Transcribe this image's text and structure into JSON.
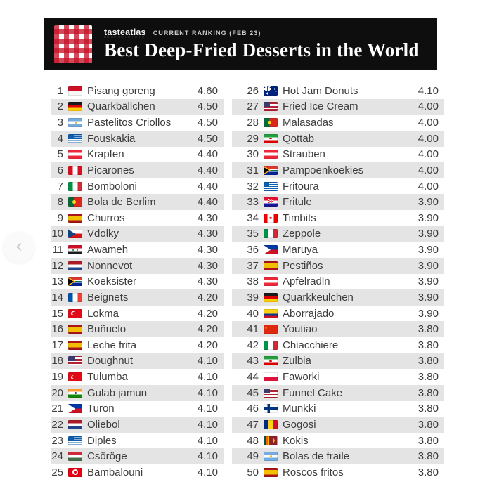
{
  "header": {
    "brand": "tasteatlas",
    "subtitle": "CURRENT RANKING (FEB 23)",
    "title": "Best Deep-Fried Desserts in the World",
    "logo_icon": "red-white-gingham-logo"
  },
  "carousel": {
    "prev_icon": "‹"
  },
  "colors": {
    "header_bg": "#0f0e0e",
    "logo_red": "#c5162c",
    "row_stripe": "#e4e4e4",
    "text": "#3d3d3d"
  },
  "ranking": {
    "left": [
      {
        "rank": 1,
        "flag": "indonesia",
        "name": "Pisang goreng",
        "score": "4.60"
      },
      {
        "rank": 2,
        "flag": "germany",
        "name": "Quarkbällchen",
        "score": "4.50"
      },
      {
        "rank": 3,
        "flag": "argentina",
        "name": "Pastelitos Criollos",
        "score": "4.50"
      },
      {
        "rank": 4,
        "flag": "greece",
        "name": "Fouskakia",
        "score": "4.50"
      },
      {
        "rank": 5,
        "flag": "austria",
        "name": "Krapfen",
        "score": "4.40"
      },
      {
        "rank": 6,
        "flag": "peru",
        "name": "Picarones",
        "score": "4.40"
      },
      {
        "rank": 7,
        "flag": "italy",
        "name": "Bomboloni",
        "score": "4.40"
      },
      {
        "rank": 8,
        "flag": "portugal",
        "name": "Bola de Berlim",
        "score": "4.40"
      },
      {
        "rank": 9,
        "flag": "spain",
        "name": "Churros",
        "score": "4.30"
      },
      {
        "rank": 10,
        "flag": "czechia",
        "name": "Vdolky",
        "score": "4.30"
      },
      {
        "rank": 11,
        "flag": "syria",
        "name": "Awameh",
        "score": "4.30"
      },
      {
        "rank": 12,
        "flag": "netherlands",
        "name": "Nonnevot",
        "score": "4.30"
      },
      {
        "rank": 13,
        "flag": "south-africa",
        "name": "Koeksister",
        "score": "4.30"
      },
      {
        "rank": 14,
        "flag": "france",
        "name": "Beignets",
        "score": "4.20"
      },
      {
        "rank": 15,
        "flag": "turkey",
        "name": "Lokma",
        "score": "4.20"
      },
      {
        "rank": 16,
        "flag": "spain",
        "name": "Buñuelo",
        "score": "4.20"
      },
      {
        "rank": 17,
        "flag": "spain",
        "name": "Leche frita",
        "score": "4.20"
      },
      {
        "rank": 18,
        "flag": "usa",
        "name": "Doughnut",
        "score": "4.10"
      },
      {
        "rank": 19,
        "flag": "turkey",
        "name": "Tulumba",
        "score": "4.10"
      },
      {
        "rank": 20,
        "flag": "india",
        "name": "Gulab jamun",
        "score": "4.10"
      },
      {
        "rank": 21,
        "flag": "philippines",
        "name": "Turon",
        "score": "4.10"
      },
      {
        "rank": 22,
        "flag": "netherlands",
        "name": "Oliebol",
        "score": "4.10"
      },
      {
        "rank": 23,
        "flag": "greece",
        "name": "Diples",
        "score": "4.10"
      },
      {
        "rank": 24,
        "flag": "hungary",
        "name": "Csöröge",
        "score": "4.10"
      },
      {
        "rank": 25,
        "flag": "tunisia",
        "name": "Bambalouni",
        "score": "4.10"
      }
    ],
    "right": [
      {
        "rank": 26,
        "flag": "australia",
        "name": "Hot Jam Donuts",
        "score": "4.10"
      },
      {
        "rank": 27,
        "flag": "usa",
        "name": "Fried Ice Cream",
        "score": "4.00"
      },
      {
        "rank": 28,
        "flag": "portugal",
        "name": "Malasadas",
        "score": "4.00"
      },
      {
        "rank": 29,
        "flag": "iran",
        "name": "Qottab",
        "score": "4.00"
      },
      {
        "rank": 30,
        "flag": "austria",
        "name": "Strauben",
        "score": "4.00"
      },
      {
        "rank": 31,
        "flag": "south-africa",
        "name": "Pampoenkoekies",
        "score": "4.00"
      },
      {
        "rank": 32,
        "flag": "greece",
        "name": "Fritoura",
        "score": "4.00"
      },
      {
        "rank": 33,
        "flag": "croatia",
        "name": "Fritule",
        "score": "3.90"
      },
      {
        "rank": 34,
        "flag": "canada",
        "name": "Timbits",
        "score": "3.90"
      },
      {
        "rank": 35,
        "flag": "italy",
        "name": "Zeppole",
        "score": "3.90"
      },
      {
        "rank": 36,
        "flag": "philippines",
        "name": "Maruya",
        "score": "3.90"
      },
      {
        "rank": 37,
        "flag": "spain",
        "name": "Pestiños",
        "score": "3.90"
      },
      {
        "rank": 38,
        "flag": "austria",
        "name": "Apfelradln",
        "score": "3.90"
      },
      {
        "rank": 39,
        "flag": "germany",
        "name": "Quarkkeulchen",
        "score": "3.90"
      },
      {
        "rank": 40,
        "flag": "colombia",
        "name": "Aborrajado",
        "score": "3.90"
      },
      {
        "rank": 41,
        "flag": "china",
        "name": "Youtiao",
        "score": "3.80"
      },
      {
        "rank": 42,
        "flag": "italy",
        "name": "Chiacchiere",
        "score": "3.80"
      },
      {
        "rank": 43,
        "flag": "iran",
        "name": "Zulbia",
        "score": "3.80"
      },
      {
        "rank": 44,
        "flag": "poland",
        "name": "Faworki",
        "score": "3.80"
      },
      {
        "rank": 45,
        "flag": "usa",
        "name": "Funnel Cake",
        "score": "3.80"
      },
      {
        "rank": 46,
        "flag": "finland",
        "name": "Munkki",
        "score": "3.80"
      },
      {
        "rank": 47,
        "flag": "romania",
        "name": "Gogoși",
        "score": "3.80"
      },
      {
        "rank": 48,
        "flag": "sri-lanka",
        "name": "Kokis",
        "score": "3.80"
      },
      {
        "rank": 49,
        "flag": "argentina",
        "name": "Bolas de fraile",
        "score": "3.80"
      },
      {
        "rank": 50,
        "flag": "spain",
        "name": "Roscos fritos",
        "score": "3.80"
      }
    ]
  }
}
